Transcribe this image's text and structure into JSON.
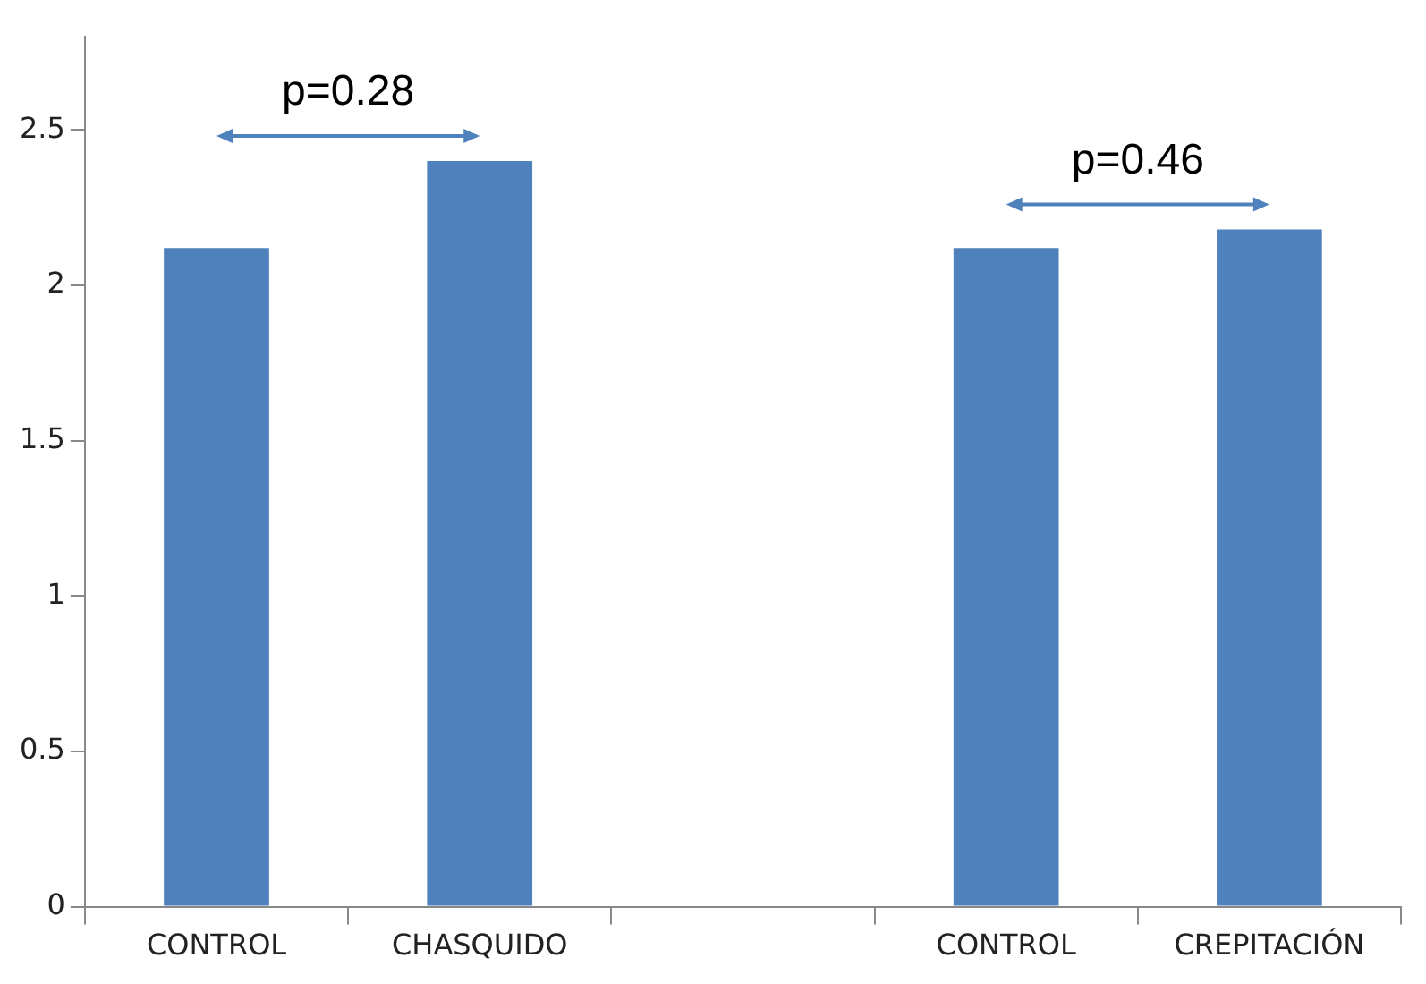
{
  "chart_data": {
    "type": "bar",
    "categories": [
      "CONTROL",
      "CHASQUIDO",
      null,
      "CONTROL",
      "CREPITACIÓN"
    ],
    "values": [
      2.12,
      2.4,
      null,
      2.12,
      2.18
    ],
    "color": "#4f81bd",
    "ylim": [
      0,
      2.8
    ],
    "yticks": [
      0,
      0.5,
      1,
      1.5,
      2,
      2.5
    ],
    "grid": false,
    "legend": false,
    "annotations": [
      "p=0.28",
      "p=0.46"
    ]
  }
}
